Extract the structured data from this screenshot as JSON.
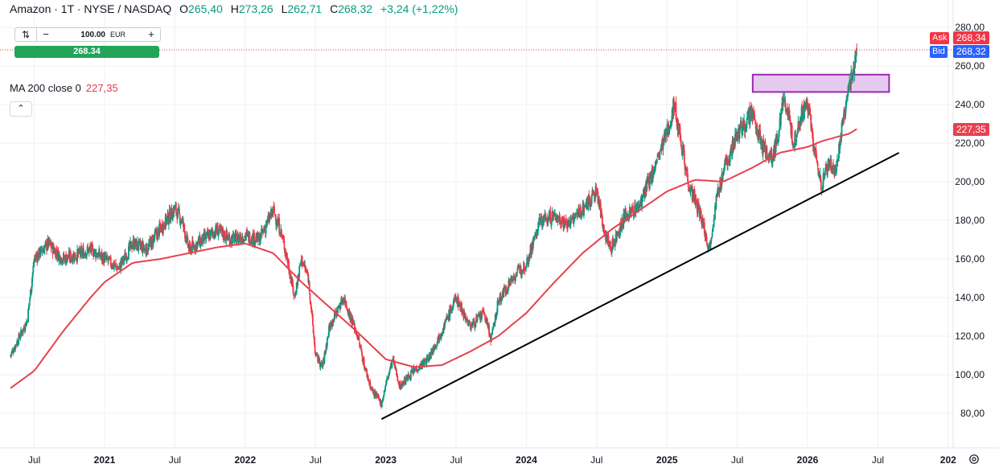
{
  "header": {
    "symbol": "Amazon · 1T · NYSE / NASDAQ",
    "open_key": "O",
    "open": "265,40",
    "high_key": "H",
    "high": "273,26",
    "low_key": "L",
    "low": "262,71",
    "close_key": "C",
    "close": "268,32",
    "change": "+3,24 (+1,22%)"
  },
  "trade": {
    "reset_icon": "reset-icon",
    "minus": "−",
    "quantity": "100.00",
    "currency": "EUR",
    "plus": "+",
    "price": "268.34"
  },
  "ma": {
    "label": "MA 200 close 0",
    "value": "227,35"
  },
  "collapse_label": "⌃",
  "price_scale": {
    "ask_tag": "Ask",
    "ask": "268,34",
    "bid_tag": "Bid",
    "bid": "268,32",
    "ma_value": "227,35"
  },
  "colors": {
    "up": "#089981",
    "down": "#f23645",
    "ma": "#e8404f",
    "trendline": "#000000",
    "zone_fill": "#e6c9ef",
    "zone_stroke": "#9c27b0",
    "ask": "#f23645",
    "bid": "#2962ff"
  },
  "chart_data": {
    "type": "candlestick",
    "title": "Amazon · 1T · NYSE / NASDAQ",
    "ylim": [
      72,
      284
    ],
    "y_ticks": [
      "80,00",
      "100,00",
      "120,00",
      "140,00",
      "160,00",
      "180,00",
      "200,00",
      "220,00",
      "240,00",
      "260,00",
      "280,00"
    ],
    "x_ticks": [
      "Jul",
      "2021",
      "Jul",
      "2022",
      "Jul",
      "2023",
      "Jul",
      "2024",
      "Jul",
      "2025",
      "Jul",
      "2026",
      "Jul",
      "202"
    ],
    "grid": true,
    "series": [
      {
        "name": "Amazon",
        "kind": "price",
        "x": [
          2020.33,
          2020.45,
          2020.5,
          2020.6,
          2020.7,
          2020.8,
          2020.9,
          2021.0,
          2021.1,
          2021.2,
          2021.3,
          2021.4,
          2021.5,
          2021.55,
          2021.6,
          2021.7,
          2021.8,
          2021.9,
          2022.0,
          2022.1,
          2022.2,
          2022.25,
          2022.3,
          2022.35,
          2022.4,
          2022.45,
          2022.5,
          2022.55,
          2022.6,
          2022.7,
          2022.8,
          2022.85,
          2022.9,
          2022.97,
          2023.0,
          2023.05,
          2023.1,
          2023.2,
          2023.3,
          2023.4,
          2023.5,
          2023.6,
          2023.7,
          2023.75,
          2023.8,
          2023.9,
          2024.0,
          2024.1,
          2024.2,
          2024.3,
          2024.4,
          2024.5,
          2024.55,
          2024.6,
          2024.7,
          2024.8,
          2024.9,
          2025.0,
          2025.05,
          2025.1,
          2025.15,
          2025.25,
          2025.3,
          2025.35,
          2025.4,
          2025.5,
          2025.6,
          2025.7,
          2025.75,
          2025.8,
          2025.83,
          2025.9,
          2025.95,
          2026.0,
          2026.05,
          2026.1,
          2026.15,
          2026.2,
          2026.25,
          2026.3,
          2026.35
        ],
        "y": [
          110,
          128,
          160,
          168,
          160,
          162,
          165,
          160,
          155,
          168,
          165,
          176,
          186,
          180,
          165,
          170,
          175,
          170,
          172,
          170,
          185,
          175,
          160,
          140,
          160,
          150,
          110,
          104,
          125,
          140,
          120,
          104,
          92,
          85,
          95,
          108,
          94,
          102,
          108,
          123,
          140,
          125,
          132,
          118,
          138,
          150,
          158,
          180,
          182,
          178,
          186,
          195,
          176,
          165,
          182,
          187,
          205,
          225,
          240,
          222,
          200,
          180,
          165,
          190,
          205,
          225,
          235,
          215,
          212,
          228,
          245,
          220,
          233,
          240,
          215,
          198,
          210,
          205,
          230,
          250,
          268.32
        ]
      },
      {
        "name": "MA 200 close 0",
        "kind": "ma",
        "x": [
          2020.33,
          2020.5,
          2020.7,
          2020.9,
          2021.0,
          2021.2,
          2021.4,
          2021.6,
          2021.8,
          2022.0,
          2022.2,
          2022.4,
          2022.6,
          2022.8,
          2023.0,
          2023.2,
          2023.4,
          2023.6,
          2023.8,
          2024.0,
          2024.2,
          2024.4,
          2024.6,
          2024.8,
          2025.0,
          2025.2,
          2025.4,
          2025.6,
          2025.8,
          2026.0,
          2026.1,
          2026.2,
          2026.25,
          2026.3,
          2026.35
        ],
        "y": [
          93,
          102,
          122,
          140,
          148,
          158,
          160,
          163,
          166,
          168,
          163,
          148,
          135,
          122,
          108,
          104,
          105,
          112,
          120,
          132,
          148,
          163,
          175,
          185,
          195,
          201,
          200,
          207,
          215,
          218,
          221,
          223,
          224,
          225,
          227.35
        ]
      }
    ],
    "annotations": [
      {
        "kind": "trendline",
        "x": [
          2022.97,
          2026.65
        ],
        "y": [
          77,
          215
        ]
      },
      {
        "kind": "zone",
        "x": [
          2025.61,
          2026.58
        ],
        "y": [
          246.5,
          255.5
        ]
      },
      {
        "kind": "hline",
        "y": 268.34
      }
    ]
  }
}
